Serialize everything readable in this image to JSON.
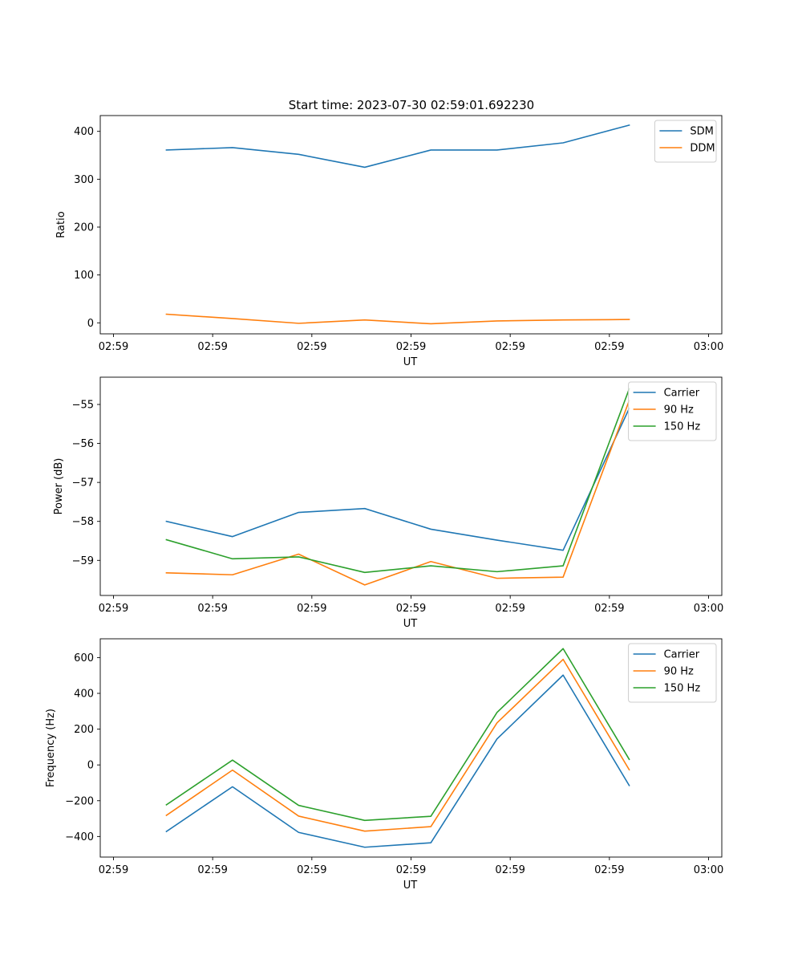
{
  "figure": {
    "title": "Start time: 2023-07-30 02:59:01.692230"
  },
  "chart_data": [
    {
      "type": "line",
      "title": "Start time: 2023-07-30 02:59:01.692230",
      "xlabel": "UT",
      "ylabel": "Ratio",
      "x_tick_labels": [
        "02:59",
        "02:59",
        "02:59",
        "02:59",
        "02:59",
        "02:59",
        "03:00"
      ],
      "y_ticks": [
        0,
        100,
        200,
        300,
        400
      ],
      "ylim": [
        -23,
        433
      ],
      "x": [
        1,
        2,
        3,
        4,
        5,
        6,
        7,
        8
      ],
      "xlim": [
        0,
        9.4
      ],
      "x_tick_positions": [
        0.2,
        1.7,
        3.2,
        4.7,
        6.2,
        7.7,
        9.2
      ],
      "legend": "top-right",
      "grid": false,
      "series": [
        {
          "name": "SDM",
          "color": "#1f77b4",
          "values": [
            361,
            366,
            352,
            325,
            361,
            361,
            376,
            413
          ]
        },
        {
          "name": "DDM",
          "color": "#ff7f0e",
          "values": [
            18,
            9,
            -1,
            6,
            -2,
            4,
            6,
            7
          ]
        }
      ]
    },
    {
      "type": "line",
      "title": "",
      "xlabel": "UT",
      "ylabel": "Power (dB)",
      "x_tick_labels": [
        "02:59",
        "02:59",
        "02:59",
        "02:59",
        "02:59",
        "02:59",
        "03:00"
      ],
      "y_ticks": [
        -55,
        -56,
        -57,
        -58,
        -59
      ],
      "ylim": [
        -59.9,
        -54.3
      ],
      "x": [
        1,
        2,
        3,
        4,
        5,
        6,
        7,
        8
      ],
      "xlim": [
        0,
        9.4
      ],
      "x_tick_positions": [
        0.2,
        1.7,
        3.2,
        4.7,
        6.2,
        7.7,
        9.2
      ],
      "legend": "top-right",
      "grid": false,
      "series": [
        {
          "name": "Carrier",
          "color": "#1f77b4",
          "values": [
            -58.0,
            -58.39,
            -57.77,
            -57.67,
            -58.2,
            -58.48,
            -58.74,
            -55.1
          ]
        },
        {
          "name": "90 Hz",
          "color": "#ff7f0e",
          "values": [
            -59.32,
            -59.37,
            -58.84,
            -59.63,
            -59.03,
            -59.46,
            -59.43,
            -54.9
          ]
        },
        {
          "name": "150 Hz",
          "color": "#2ca02c",
          "values": [
            -58.47,
            -58.96,
            -58.91,
            -59.31,
            -59.14,
            -59.29,
            -59.14,
            -54.6
          ]
        }
      ]
    },
    {
      "type": "line",
      "title": "",
      "xlabel": "UT",
      "ylabel": "Frequency (Hz)",
      "x_tick_labels": [
        "02:59",
        "02:59",
        "02:59",
        "02:59",
        "02:59",
        "02:59",
        "03:00"
      ],
      "y_ticks": [
        600,
        400,
        200,
        0,
        -200,
        -400
      ],
      "ylim": [
        -515,
        705
      ],
      "x": [
        1,
        2,
        3,
        4,
        5,
        6,
        7,
        8
      ],
      "xlim": [
        0,
        9.4
      ],
      "x_tick_positions": [
        0.2,
        1.7,
        3.2,
        4.7,
        6.2,
        7.7,
        9.2
      ],
      "legend": "top-right",
      "grid": false,
      "series": [
        {
          "name": "Carrier",
          "color": "#1f77b4",
          "values": [
            -372,
            -122,
            -377,
            -460,
            -435,
            145,
            502,
            -115
          ]
        },
        {
          "name": "90 Hz",
          "color": "#ff7f0e",
          "values": [
            -282,
            -29,
            -286,
            -370,
            -345,
            235,
            590,
            -27
          ]
        },
        {
          "name": "150 Hz",
          "color": "#2ca02c",
          "values": [
            -223,
            27,
            -226,
            -310,
            -287,
            293,
            650,
            31
          ]
        }
      ]
    }
  ]
}
